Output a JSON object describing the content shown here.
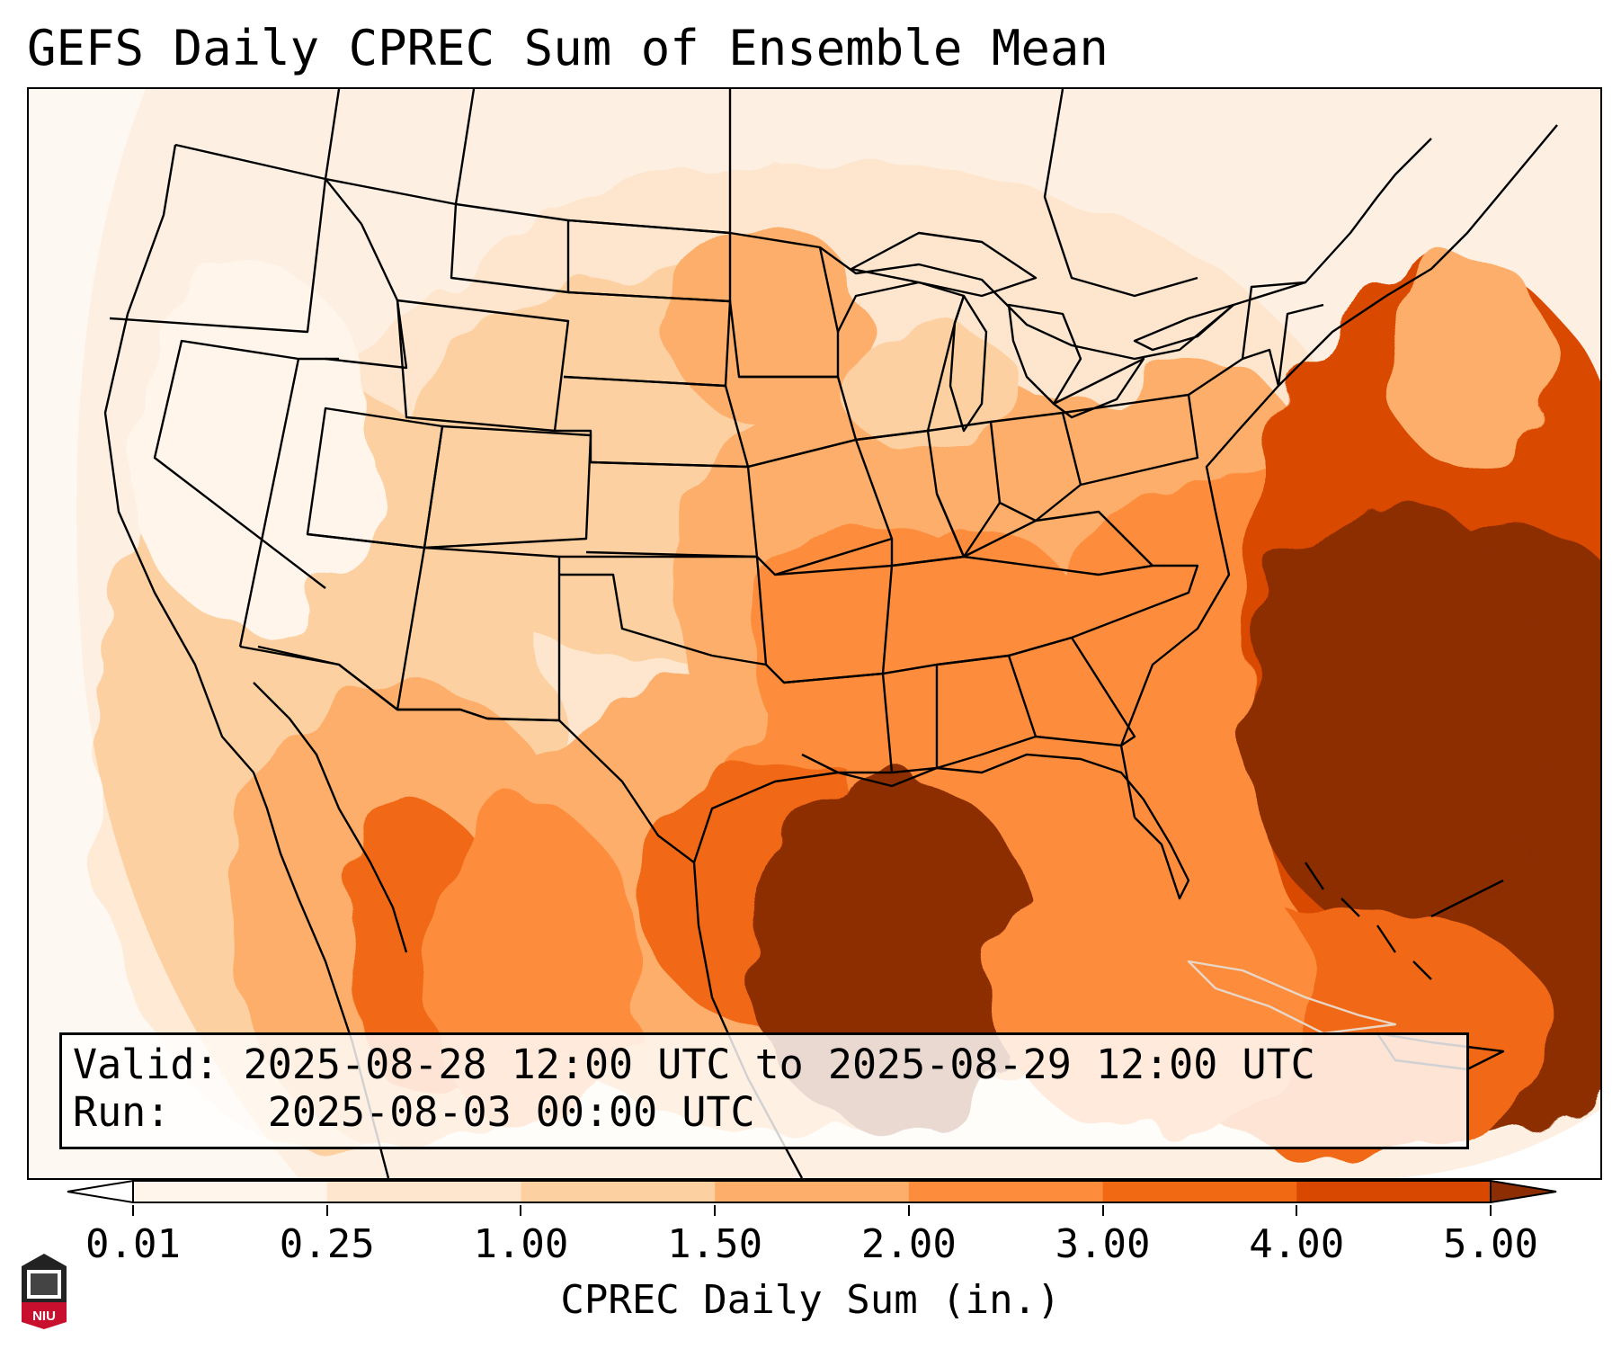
{
  "title": "GEFS Daily CPREC Sum of Ensemble Mean",
  "info": {
    "valid_label": "Valid:",
    "valid_value": "2025-08-28 12:00 UTC to 2025-08-29 12:00 UTC",
    "run_label": "Run:",
    "run_value": "2025-08-03 00:00 UTC"
  },
  "colorbar": {
    "label": "CPREC Daily Sum (in.)",
    "ticks": [
      "0.01",
      "0.25",
      "1.00",
      "1.50",
      "2.00",
      "3.00",
      "4.00",
      "5.00"
    ],
    "colors": [
      "#fff5eb",
      "#fee6ce",
      "#fdd0a2",
      "#fdae6b",
      "#fd8d3c",
      "#f16913",
      "#d94801",
      "#8c2d04"
    ],
    "under_color": "#ffffff",
    "over_color": "#8c2d04"
  },
  "logo": {
    "text": "NIU",
    "color": "#c8102e"
  }
}
